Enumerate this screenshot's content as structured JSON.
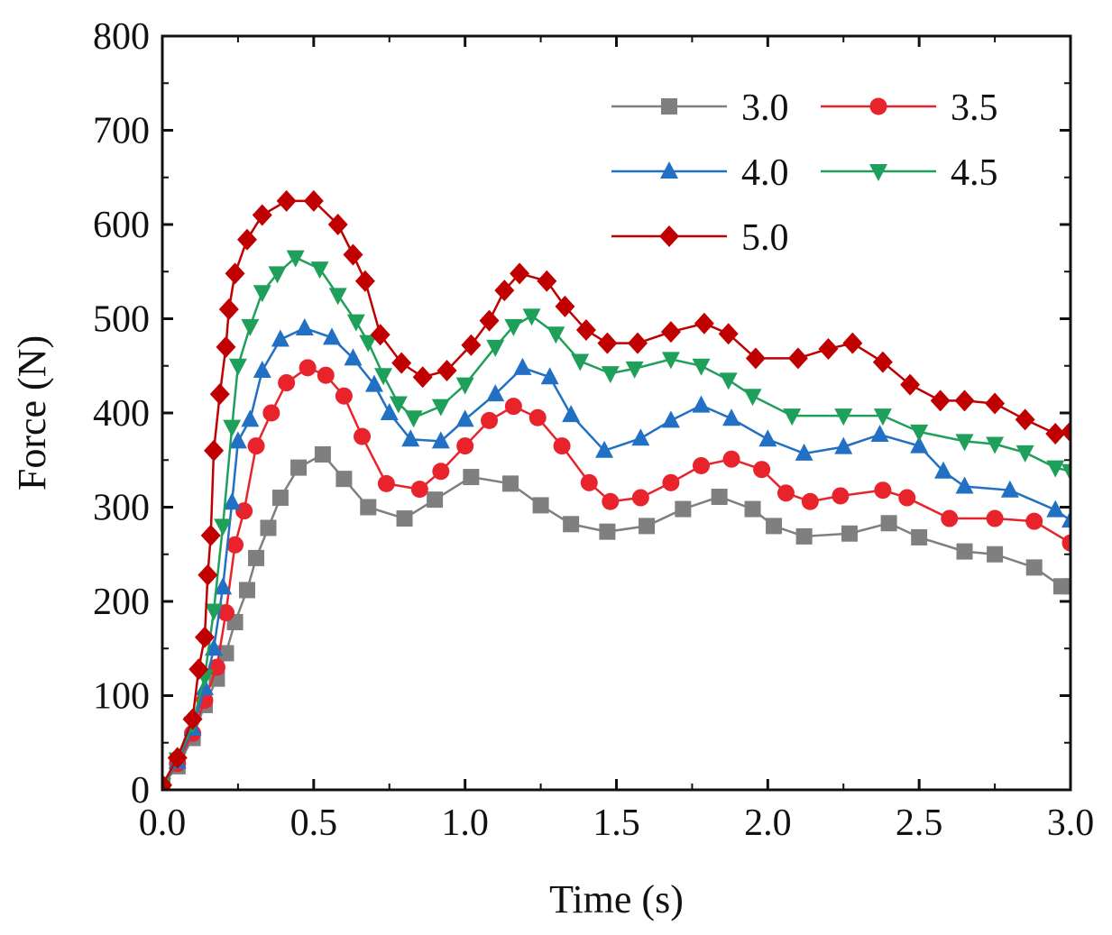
{
  "chart_data": {
    "type": "line",
    "title": "",
    "xlabel": "Time (s)",
    "ylabel": "Force (N)",
    "xlim": [
      0,
      3
    ],
    "ylim": [
      0,
      800
    ],
    "xticks": [
      0,
      0.5,
      1,
      1.5,
      2,
      2.5,
      3
    ],
    "xtick_labels": [
      "0.0",
      "0.5",
      "1.0",
      "1.5",
      "2.0",
      "2.5",
      "3.0"
    ],
    "yticks": [
      0,
      100,
      200,
      300,
      400,
      500,
      600,
      700,
      800
    ],
    "ytick_labels": [
      "0",
      "100",
      "200",
      "300",
      "400",
      "500",
      "600",
      "700",
      "800"
    ],
    "grid": false,
    "legend_position": "top-right",
    "series": [
      {
        "name": "3.0",
        "color": "#7f7f7f",
        "marker": "square",
        "points": [
          [
            0,
            5
          ],
          [
            0.05,
            25
          ],
          [
            0.1,
            55
          ],
          [
            0.14,
            90
          ],
          [
            0.18,
            118
          ],
          [
            0.21,
            145
          ],
          [
            0.24,
            178
          ],
          [
            0.28,
            212
          ],
          [
            0.31,
            246
          ],
          [
            0.35,
            278
          ],
          [
            0.39,
            310
          ],
          [
            0.45,
            342
          ],
          [
            0.53,
            356
          ],
          [
            0.6,
            330
          ],
          [
            0.68,
            300
          ],
          [
            0.8,
            288
          ],
          [
            0.9,
            308
          ],
          [
            1.02,
            332
          ],
          [
            1.15,
            325
          ],
          [
            1.25,
            302
          ],
          [
            1.35,
            282
          ],
          [
            1.47,
            274
          ],
          [
            1.6,
            280
          ],
          [
            1.72,
            298
          ],
          [
            1.84,
            311
          ],
          [
            1.95,
            298
          ],
          [
            2.02,
            280
          ],
          [
            2.12,
            269
          ],
          [
            2.27,
            272
          ],
          [
            2.4,
            283
          ],
          [
            2.5,
            268
          ],
          [
            2.65,
            253
          ],
          [
            2.75,
            250
          ],
          [
            2.88,
            236
          ],
          [
            2.97,
            216
          ],
          [
            3.0,
            216
          ]
        ]
      },
      {
        "name": "3.5",
        "color": "#e8232b",
        "marker": "circle",
        "points": [
          [
            0,
            5
          ],
          [
            0.05,
            28
          ],
          [
            0.1,
            60
          ],
          [
            0.14,
            95
          ],
          [
            0.18,
            130
          ],
          [
            0.21,
            188
          ],
          [
            0.24,
            260
          ],
          [
            0.27,
            296
          ],
          [
            0.31,
            365
          ],
          [
            0.36,
            400
          ],
          [
            0.41,
            432
          ],
          [
            0.48,
            448
          ],
          [
            0.54,
            440
          ],
          [
            0.6,
            418
          ],
          [
            0.66,
            375
          ],
          [
            0.74,
            325
          ],
          [
            0.85,
            319
          ],
          [
            0.92,
            338
          ],
          [
            1.0,
            365
          ],
          [
            1.08,
            392
          ],
          [
            1.16,
            407
          ],
          [
            1.24,
            395
          ],
          [
            1.32,
            365
          ],
          [
            1.41,
            326
          ],
          [
            1.48,
            306
          ],
          [
            1.58,
            310
          ],
          [
            1.68,
            326
          ],
          [
            1.78,
            344
          ],
          [
            1.88,
            351
          ],
          [
            1.98,
            340
          ],
          [
            2.06,
            315
          ],
          [
            2.14,
            306
          ],
          [
            2.24,
            312
          ],
          [
            2.38,
            318
          ],
          [
            2.46,
            310
          ],
          [
            2.6,
            288
          ],
          [
            2.75,
            288
          ],
          [
            2.88,
            285
          ],
          [
            3.0,
            262
          ]
        ]
      },
      {
        "name": "4.0",
        "color": "#2170c4",
        "marker": "triangle-up",
        "points": [
          [
            0,
            5
          ],
          [
            0.05,
            30
          ],
          [
            0.1,
            65
          ],
          [
            0.14,
            108
          ],
          [
            0.17,
            150
          ],
          [
            0.2,
            215
          ],
          [
            0.23,
            305
          ],
          [
            0.25,
            370
          ],
          [
            0.29,
            393
          ],
          [
            0.33,
            445
          ],
          [
            0.39,
            478
          ],
          [
            0.47,
            490
          ],
          [
            0.56,
            480
          ],
          [
            0.63,
            458
          ],
          [
            0.7,
            430
          ],
          [
            0.75,
            400
          ],
          [
            0.82,
            372
          ],
          [
            0.92,
            370
          ],
          [
            1.0,
            393
          ],
          [
            1.1,
            420
          ],
          [
            1.19,
            448
          ],
          [
            1.28,
            438
          ],
          [
            1.35,
            398
          ],
          [
            1.46,
            360
          ],
          [
            1.58,
            373
          ],
          [
            1.68,
            392
          ],
          [
            1.78,
            408
          ],
          [
            1.88,
            394
          ],
          [
            2.0,
            372
          ],
          [
            2.12,
            357
          ],
          [
            2.25,
            364
          ],
          [
            2.37,
            377
          ],
          [
            2.5,
            365
          ],
          [
            2.58,
            338
          ],
          [
            2.65,
            322
          ],
          [
            2.8,
            318
          ],
          [
            2.95,
            297
          ],
          [
            3.0,
            286
          ]
        ]
      },
      {
        "name": "4.5",
        "color": "#1fa05a",
        "marker": "triangle-down",
        "points": [
          [
            0,
            5
          ],
          [
            0.05,
            32
          ],
          [
            0.1,
            70
          ],
          [
            0.14,
            120
          ],
          [
            0.17,
            190
          ],
          [
            0.2,
            280
          ],
          [
            0.23,
            385
          ],
          [
            0.25,
            450
          ],
          [
            0.29,
            492
          ],
          [
            0.33,
            528
          ],
          [
            0.38,
            548
          ],
          [
            0.44,
            565
          ],
          [
            0.52,
            553
          ],
          [
            0.58,
            525
          ],
          [
            0.64,
            497
          ],
          [
            0.68,
            475
          ],
          [
            0.73,
            440
          ],
          [
            0.78,
            410
          ],
          [
            0.83,
            395
          ],
          [
            0.92,
            407
          ],
          [
            1.0,
            430
          ],
          [
            1.1,
            470
          ],
          [
            1.16,
            492
          ],
          [
            1.22,
            503
          ],
          [
            1.3,
            484
          ],
          [
            1.38,
            455
          ],
          [
            1.48,
            442
          ],
          [
            1.56,
            447
          ],
          [
            1.68,
            457
          ],
          [
            1.78,
            450
          ],
          [
            1.87,
            435
          ],
          [
            1.95,
            418
          ],
          [
            2.08,
            397
          ],
          [
            2.25,
            397
          ],
          [
            2.38,
            397
          ],
          [
            2.5,
            380
          ],
          [
            2.65,
            370
          ],
          [
            2.75,
            367
          ],
          [
            2.85,
            358
          ],
          [
            2.95,
            342
          ],
          [
            3.0,
            338
          ]
        ]
      },
      {
        "name": "5.0",
        "color": "#c00000",
        "marker": "diamond",
        "points": [
          [
            0,
            5
          ],
          [
            0.05,
            34
          ],
          [
            0.1,
            75
          ],
          [
            0.12,
            128
          ],
          [
            0.14,
            162
          ],
          [
            0.15,
            228
          ],
          [
            0.16,
            270
          ],
          [
            0.17,
            360
          ],
          [
            0.19,
            420
          ],
          [
            0.21,
            470
          ],
          [
            0.22,
            510
          ],
          [
            0.24,
            548
          ],
          [
            0.28,
            584
          ],
          [
            0.33,
            610
          ],
          [
            0.41,
            625
          ],
          [
            0.5,
            625
          ],
          [
            0.58,
            600
          ],
          [
            0.63,
            568
          ],
          [
            0.67,
            540
          ],
          [
            0.72,
            483
          ],
          [
            0.79,
            453
          ],
          [
            0.86,
            438
          ],
          [
            0.94,
            445
          ],
          [
            1.02,
            472
          ],
          [
            1.08,
            498
          ],
          [
            1.13,
            530
          ],
          [
            1.18,
            548
          ],
          [
            1.27,
            540
          ],
          [
            1.33,
            513
          ],
          [
            1.4,
            488
          ],
          [
            1.47,
            474
          ],
          [
            1.57,
            474
          ],
          [
            1.68,
            486
          ],
          [
            1.79,
            495
          ],
          [
            1.87,
            484
          ],
          [
            1.96,
            458
          ],
          [
            2.1,
            458
          ],
          [
            2.2,
            468
          ],
          [
            2.28,
            474
          ],
          [
            2.38,
            454
          ],
          [
            2.47,
            430
          ],
          [
            2.57,
            413
          ],
          [
            2.65,
            413
          ],
          [
            2.75,
            410
          ],
          [
            2.85,
            393
          ],
          [
            2.95,
            378
          ],
          [
            3.0,
            380
          ]
        ]
      }
    ]
  }
}
